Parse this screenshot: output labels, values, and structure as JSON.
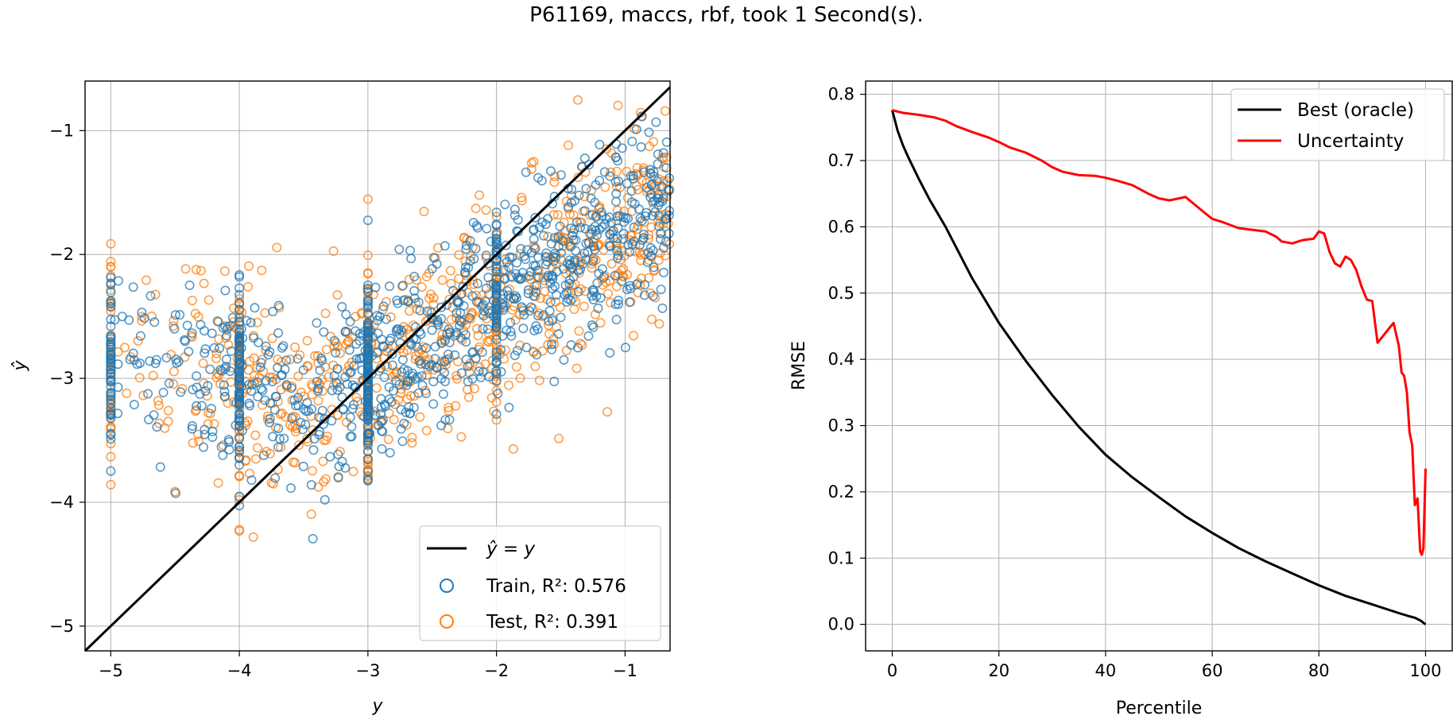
{
  "figure": {
    "title": "P61169, maccs, rbf, took 1 Second(s)."
  },
  "colors": {
    "train": "#1f77b4",
    "test": "#ff7f0e",
    "identity": "#000000",
    "oracle": "#000000",
    "uncertainty": "#ff0000"
  },
  "chart_data": [
    {
      "type": "scatter",
      "xlabel": "y",
      "ylabel": "ŷ",
      "xlim": [
        -5.2,
        -0.65
      ],
      "ylim": [
        -5.2,
        -0.6
      ],
      "xticks": [
        -5,
        -4,
        -3,
        -2,
        -1
      ],
      "yticks": [
        -5,
        -4,
        -3,
        -2,
        -1
      ],
      "grid": true,
      "legend_position": "lower-right",
      "legend": {
        "identity_label": "ŷ = y",
        "train_label": "Train, R²: 0.576",
        "test_label": "Test,  R²: 0.391"
      },
      "series": [
        {
          "name": "Train",
          "r2": 0.576,
          "marker": "hollow-circle",
          "approx_count": 1100,
          "trend": "clustered around identity with spread"
        },
        {
          "name": "Test",
          "r2": 0.391,
          "marker": "hollow-circle",
          "approx_count": 900,
          "trend": "clustered around identity with wider spread"
        }
      ],
      "identity_line": {
        "x": [
          -5.2,
          -0.65
        ],
        "y": [
          -5.2,
          -0.65
        ]
      }
    },
    {
      "type": "line",
      "xlabel": "Percentile",
      "ylabel": "RMSE",
      "xlim": [
        -5,
        105
      ],
      "ylim": [
        -0.04,
        0.82
      ],
      "xticks": [
        0,
        20,
        40,
        60,
        80,
        100
      ],
      "yticks": [
        0.0,
        0.1,
        0.2,
        0.3,
        0.4,
        0.5,
        0.6,
        0.7,
        0.8
      ],
      "grid": true,
      "legend_position": "top-right",
      "series": [
        {
          "name": "Best (oracle)",
          "x": [
            0,
            1,
            2,
            3,
            5,
            7,
            10,
            15,
            20,
            25,
            30,
            35,
            40,
            45,
            50,
            55,
            60,
            65,
            70,
            75,
            80,
            85,
            90,
            95,
            97,
            98,
            99,
            100
          ],
          "y": [
            0.776,
            0.745,
            0.723,
            0.705,
            0.672,
            0.641,
            0.6,
            0.522,
            0.455,
            0.398,
            0.346,
            0.298,
            0.256,
            0.222,
            0.192,
            0.163,
            0.138,
            0.115,
            0.095,
            0.077,
            0.059,
            0.043,
            0.03,
            0.017,
            0.012,
            0.01,
            0.006,
            0.0
          ]
        },
        {
          "name": "Uncertainty",
          "x": [
            0,
            2,
            5,
            8,
            10,
            12,
            15,
            18,
            20,
            22,
            25,
            28,
            30,
            32,
            35,
            38,
            40,
            42,
            45,
            48,
            50,
            52,
            55,
            58,
            60,
            62,
            65,
            68,
            70,
            72,
            73,
            75,
            77,
            79,
            80,
            81,
            82,
            83,
            84,
            85,
            86,
            87,
            88,
            89,
            90,
            91,
            92,
            93,
            94,
            95,
            95.5,
            96,
            96.5,
            97,
            97.5,
            98,
            98.5,
            99,
            99.3,
            99.6,
            100
          ],
          "y": [
            0.776,
            0.772,
            0.769,
            0.765,
            0.76,
            0.752,
            0.743,
            0.735,
            0.728,
            0.72,
            0.712,
            0.7,
            0.69,
            0.683,
            0.678,
            0.677,
            0.674,
            0.67,
            0.663,
            0.65,
            0.643,
            0.64,
            0.645,
            0.625,
            0.612,
            0.607,
            0.598,
            0.595,
            0.593,
            0.585,
            0.578,
            0.575,
            0.58,
            0.582,
            0.593,
            0.59,
            0.562,
            0.545,
            0.54,
            0.555,
            0.55,
            0.535,
            0.51,
            0.49,
            0.488,
            0.425,
            0.435,
            0.445,
            0.455,
            0.42,
            0.38,
            0.375,
            0.35,
            0.29,
            0.27,
            0.18,
            0.19,
            0.11,
            0.105,
            0.115,
            0.235
          ]
        }
      ]
    }
  ]
}
